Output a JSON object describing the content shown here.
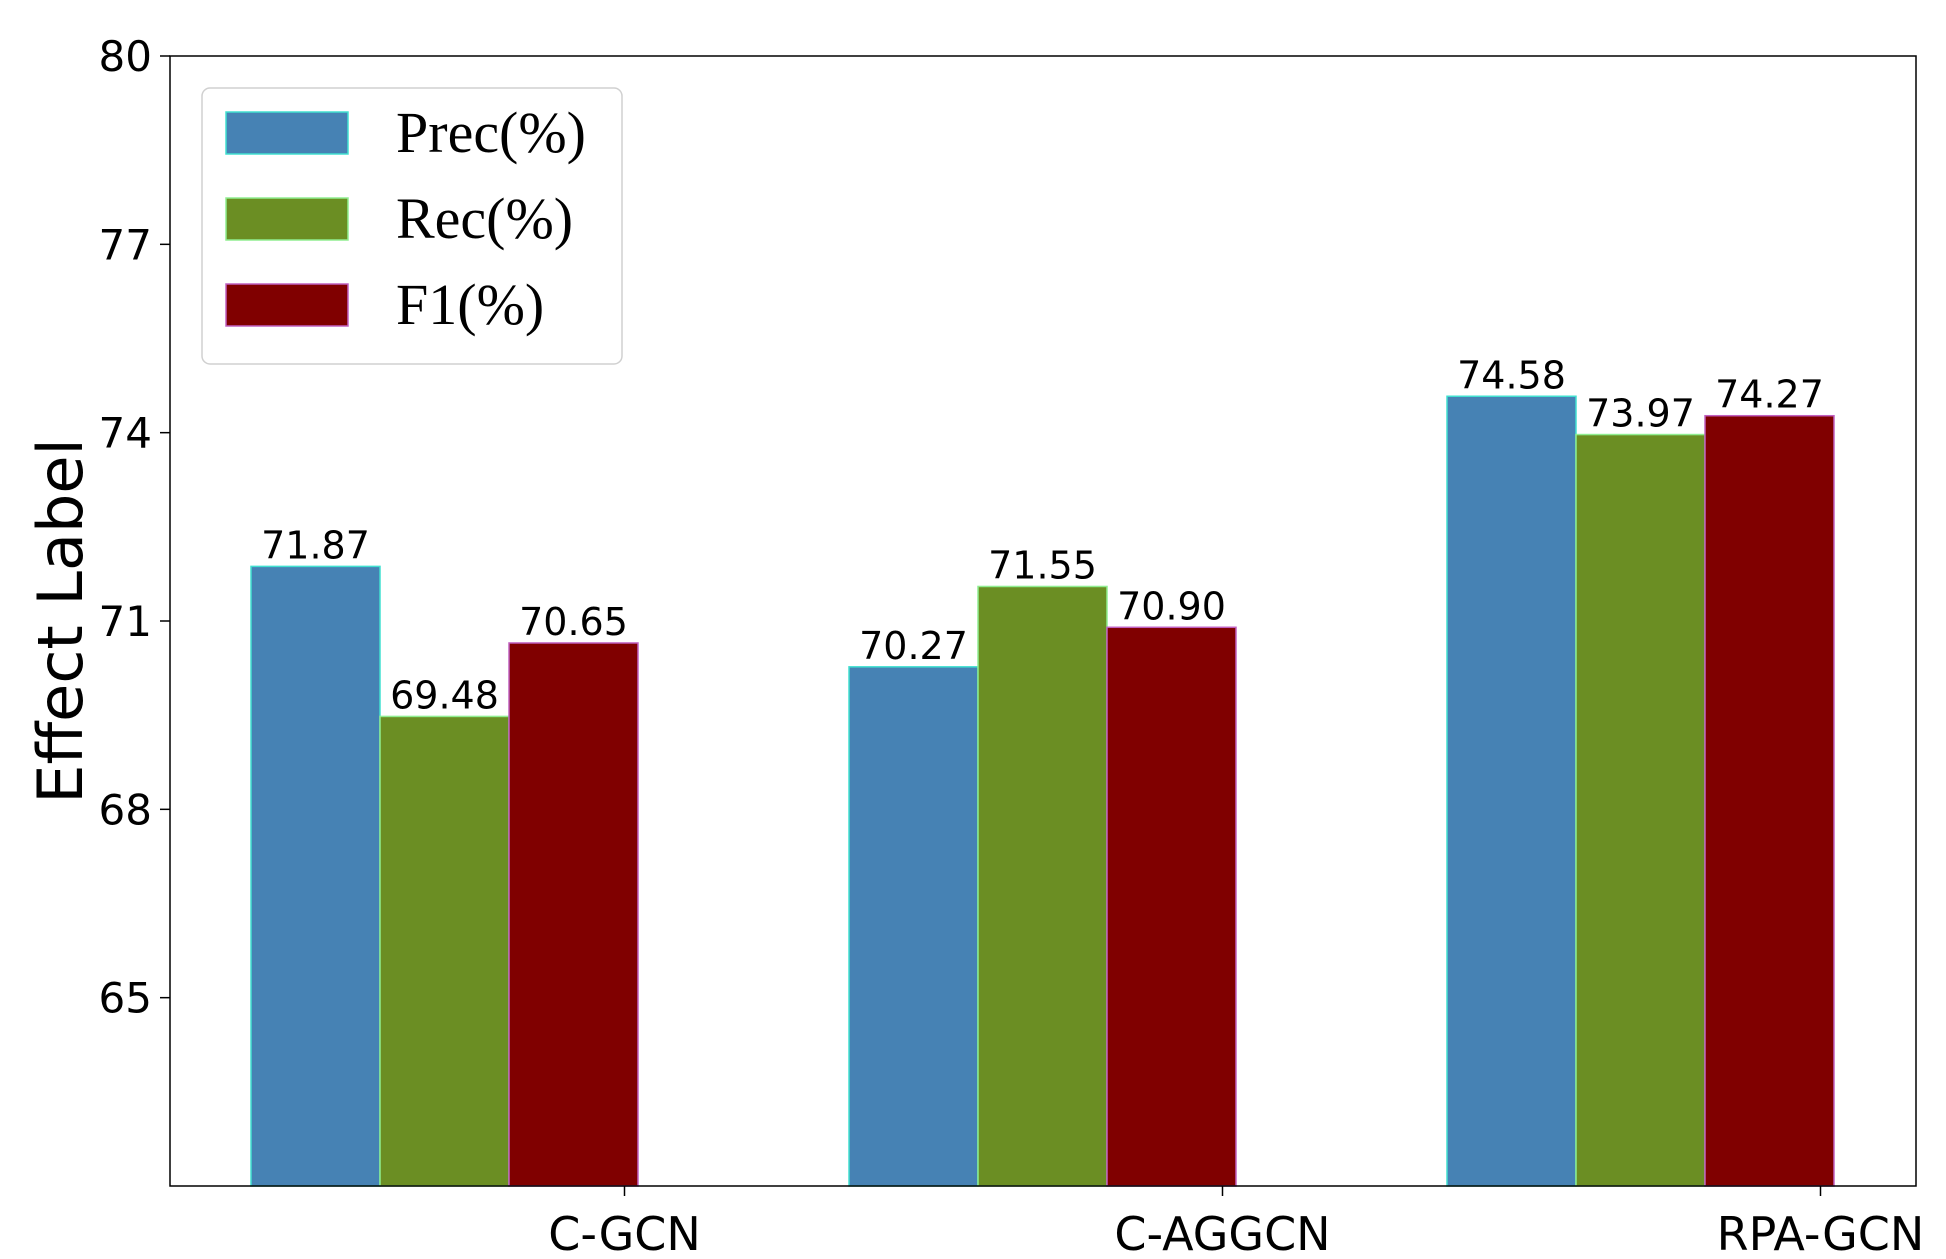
{
  "chart_data": {
    "type": "bar",
    "title": "",
    "xlabel": "",
    "ylabel": "Effect Label",
    "ylim": [
      62,
      80
    ],
    "yticks": [
      65,
      68,
      71,
      74,
      77,
      80
    ],
    "grid": false,
    "legend_position": "top-left",
    "categories": [
      "C-GCN",
      "C-AGGCN",
      "RPA-GCN"
    ],
    "series": [
      {
        "name": "Prec(%)",
        "color": "#4682b4",
        "edge": "#40e0d0",
        "values": [
          71.87,
          70.27,
          74.58
        ],
        "labels": [
          "71.87",
          "70.27",
          "74.58"
        ]
      },
      {
        "name": "Rec(%)",
        "color": "#6b8e23",
        "edge": "#90ee90",
        "values": [
          69.48,
          71.55,
          73.97
        ],
        "labels": [
          "69.48",
          "71.55",
          "73.97"
        ]
      },
      {
        "name": "F1(%)",
        "color": "#800000",
        "edge": "#c060c0",
        "values": [
          70.65,
          70.9,
          74.27
        ],
        "labels": [
          "70.65",
          "70.90",
          "74.27"
        ]
      }
    ]
  }
}
